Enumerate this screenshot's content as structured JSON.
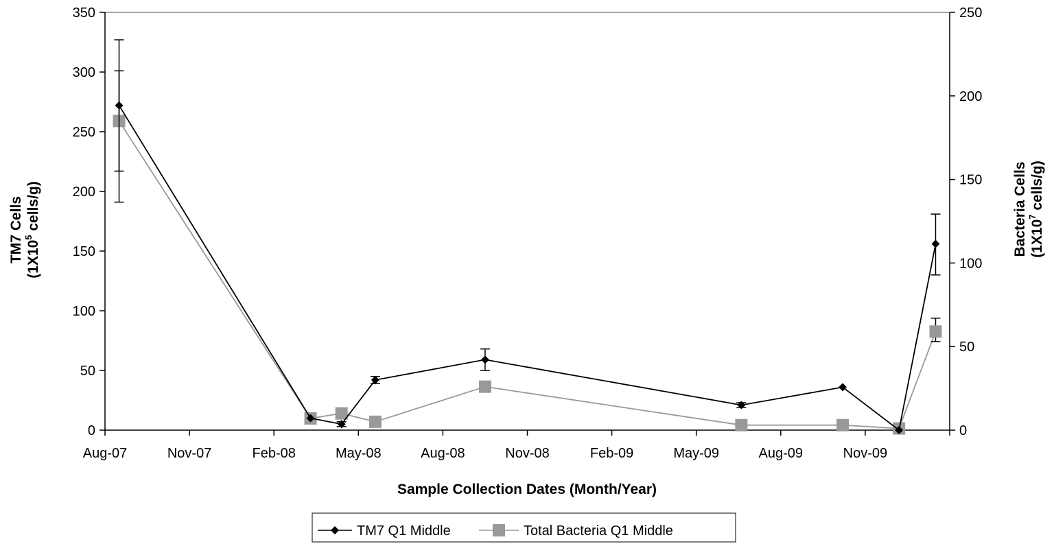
{
  "chart_data": {
    "type": "line",
    "x_axis": {
      "title": "Sample Collection Dates (Month/Year)",
      "tick_labels": [
        "Aug-07",
        "Nov-07",
        "Feb-08",
        "May-08",
        "Aug-08",
        "Nov-08",
        "Feb-09",
        "May-09",
        "Aug-09",
        "Nov-09"
      ],
      "range_months": [
        0,
        30
      ]
    },
    "y_left": {
      "title_line1": "TM7 Cells",
      "title_line2_prefix": "(1X10",
      "title_line2_exp": "5",
      "title_line2_suffix": " cells/g)",
      "min": 0,
      "max": 350,
      "step": 50,
      "tick_labels": [
        "0",
        "50",
        "100",
        "150",
        "200",
        "250",
        "300",
        "350"
      ]
    },
    "y_right": {
      "title_line1": "Bacteria Cells",
      "title_line2_prefix": "(1X10",
      "title_line2_exp": "7",
      "title_line2_suffix": " cells/g)",
      "min": 0,
      "max": 250,
      "step": 50,
      "tick_labels": [
        "0",
        "50",
        "100",
        "150",
        "200",
        "250"
      ]
    },
    "series": [
      {
        "name": "TM7 Q1 Middle",
        "axis": "left",
        "color": "#000000",
        "marker": "diamond",
        "points": [
          {
            "x": 0.5,
            "y": 272,
            "err_low": 191,
            "err_high": 327
          },
          {
            "x": 7.3,
            "y": 10
          },
          {
            "x": 8.4,
            "y": 5,
            "err_low": 3,
            "err_high": 7
          },
          {
            "x": 9.6,
            "y": 42,
            "err_low": 39,
            "err_high": 45
          },
          {
            "x": 13.5,
            "y": 59,
            "err_low": 50,
            "err_high": 68
          },
          {
            "x": 22.6,
            "y": 21,
            "err_low": 19,
            "err_high": 23
          },
          {
            "x": 26.2,
            "y": 36
          },
          {
            "x": 28.2,
            "y": 0
          },
          {
            "x": 29.5,
            "y": 156,
            "err_low": 130,
            "err_high": 181
          }
        ]
      },
      {
        "name": "Total Bacteria Q1 Middle",
        "axis": "right",
        "color": "#999999",
        "marker": "square",
        "points": [
          {
            "x": 0.5,
            "y": 185,
            "err_low": 155,
            "err_high": 215
          },
          {
            "x": 7.3,
            "y": 7
          },
          {
            "x": 8.4,
            "y": 10
          },
          {
            "x": 9.6,
            "y": 5
          },
          {
            "x": 13.5,
            "y": 26
          },
          {
            "x": 22.6,
            "y": 3
          },
          {
            "x": 26.2,
            "y": 3
          },
          {
            "x": 28.2,
            "y": 1
          },
          {
            "x": 29.5,
            "y": 59,
            "err_low": 53,
            "err_high": 67
          }
        ]
      }
    ],
    "legend": {
      "position": "bottom-center",
      "items": [
        "TM7 Q1 Middle",
        "Total Bacteria Q1 Middle"
      ]
    },
    "grid": false
  }
}
